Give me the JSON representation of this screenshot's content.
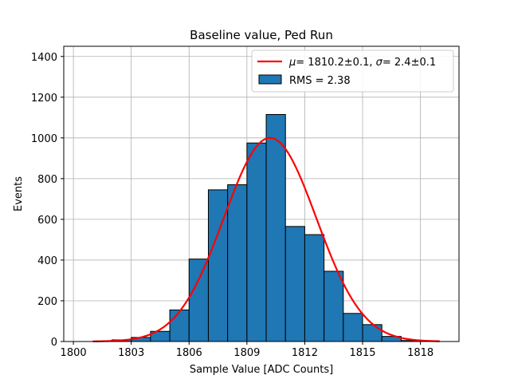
{
  "chart_data": {
    "type": "bar",
    "title": "Baseline value, Ped Run",
    "xlabel": "Sample Value [ADC Counts]",
    "ylabel": "Events",
    "xlim": [
      1799.5,
      1820
    ],
    "ylim": [
      0,
      1450
    ],
    "xticks": [
      1800,
      1803,
      1806,
      1809,
      1812,
      1815,
      1818
    ],
    "yticks": [
      0,
      200,
      400,
      600,
      800,
      1000,
      1200,
      1400
    ],
    "grid": true,
    "legend_position": "top-right",
    "bin_width": 1,
    "histogram": {
      "name": "RMS = 2.38",
      "color": "#1f77b4",
      "bins": [
        {
          "x": 1800.5,
          "value": 0
        },
        {
          "x": 1801.5,
          "value": 0
        },
        {
          "x": 1802.5,
          "value": 8
        },
        {
          "x": 1803.5,
          "value": 20
        },
        {
          "x": 1804.5,
          "value": 50
        },
        {
          "x": 1805.5,
          "value": 155
        },
        {
          "x": 1806.5,
          "value": 405
        },
        {
          "x": 1807.5,
          "value": 745
        },
        {
          "x": 1808.5,
          "value": 770
        },
        {
          "x": 1809.5,
          "value": 975
        },
        {
          "x": 1810.5,
          "value": 1115
        },
        {
          "x": 1811.5,
          "value": 565
        },
        {
          "x": 1812.5,
          "value": 525
        },
        {
          "x": 1813.5,
          "value": 345
        },
        {
          "x": 1814.5,
          "value": 138
        },
        {
          "x": 1815.5,
          "value": 83
        },
        {
          "x": 1816.5,
          "value": 25
        },
        {
          "x": 1817.5,
          "value": 5
        }
      ]
    },
    "fit": {
      "name": "μ = 1810.2±0.1, σ = 2.4±0.1",
      "name_parts": {
        "mu_symbol": "μ",
        "mu_value": "= 1810.2±0.1, ",
        "sigma_symbol": "σ",
        "sigma_value": "= 2.4±0.1"
      },
      "color": "#ff0000",
      "mu": 1810.2,
      "sigma": 2.4,
      "amplitude": 1000,
      "x_range": [
        1801,
        1819
      ]
    },
    "legend": {
      "fit_label": "μ = 1810.2±0.1, σ = 2.4±0.1",
      "hist_label": "RMS = 2.38"
    }
  }
}
